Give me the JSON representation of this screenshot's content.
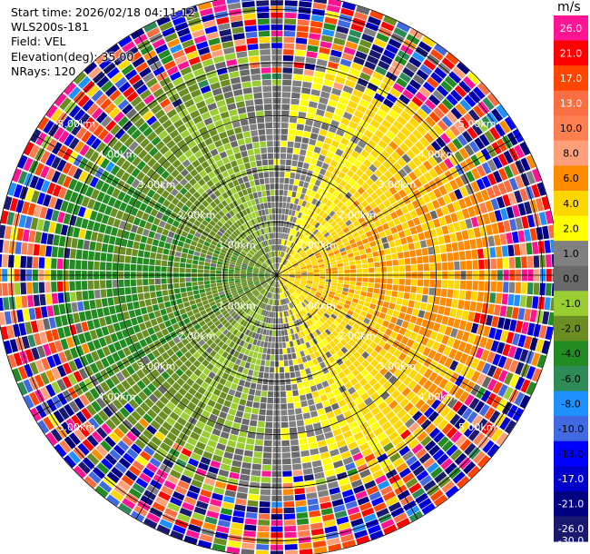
{
  "header": {
    "start_time": "Start time: 2026/02/18 04:11:12",
    "instrument": "WLS200s-181",
    "field": "Field: VEL",
    "elevation": "Elevation(deg): 35.00",
    "nrays": "NRays: 120"
  },
  "colorbar": {
    "unit": "m/s",
    "ticks": [
      "26.0",
      "21.0",
      "17.0",
      "13.0",
      "10.0",
      "8.0",
      "6.0",
      "4.0",
      "2.0",
      "1.0",
      "0.0",
      "-1.0",
      "-2.0",
      "-4.0",
      "-6.0",
      "-8.0",
      "-10.0",
      "-13.0",
      "-17.0",
      "-21.0",
      "-26.0",
      "-30.0"
    ],
    "bin_colors": [
      "#ff1493",
      "#ff0000",
      "#ff4500",
      "#fa6e42",
      "#ff7f50",
      "#ffa07a",
      "#ff8c00",
      "#ffd700",
      "#ffff00",
      "#808080",
      "#696969",
      "#9acd32",
      "#6b8e23",
      "#228b22",
      "#2e8b57",
      "#1e90ff",
      "#4169e1",
      "#0000ff",
      "#0000cd",
      "#000080",
      "#191970"
    ]
  },
  "chart_data": {
    "type": "ppi",
    "field": "VEL",
    "units": "m/s",
    "elevation_deg": 35.0,
    "n_rays": 120,
    "range_rings_km": [
      1,
      2,
      3,
      4,
      5
    ],
    "ring_labels": [
      "1.00km",
      "2.00km",
      "3.00km",
      "4.00km",
      "5.00km"
    ],
    "max_range_km": 5.3,
    "velocity_range": [
      -30,
      26
    ],
    "pattern": "receding (positive) velocities to the east, approaching (negative) velocities to the west; noisy at ranges beyond about 4.3 km"
  }
}
